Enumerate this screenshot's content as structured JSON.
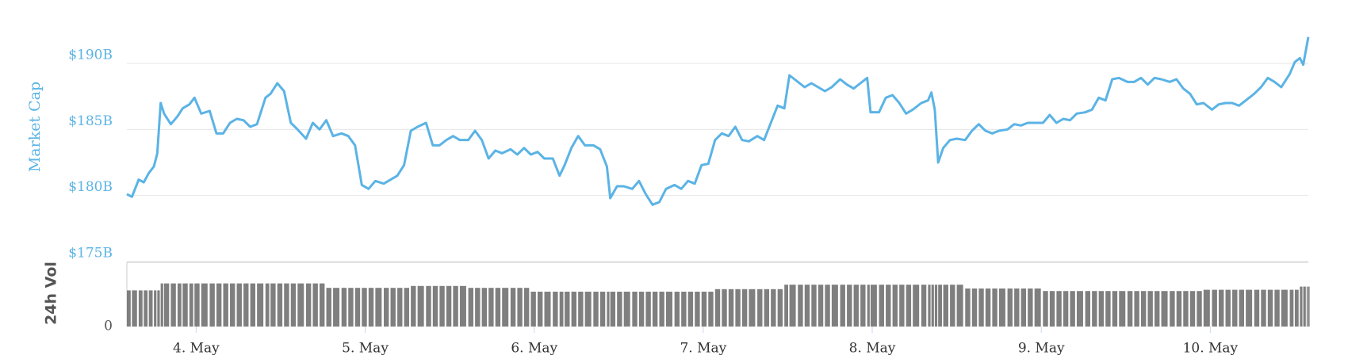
{
  "chart_data": [
    {
      "type": "line",
      "y_label": "Market Cap",
      "color": "#5bb3e5",
      "grid": true,
      "xlim": [
        3.59,
        10.58
      ],
      "ylim": [
        175,
        193
      ],
      "yticks": [
        {
          "value": 175,
          "label": "$175B"
        },
        {
          "value": 180,
          "label": "$180B"
        },
        {
          "value": 185,
          "label": "$185B"
        },
        {
          "value": 190,
          "label": "$190B"
        }
      ],
      "x": [
        3.59,
        3.62,
        3.66,
        3.69,
        3.72,
        3.75,
        3.77,
        3.79,
        3.81,
        3.85,
        3.89,
        3.92,
        3.96,
        3.99,
        4.03,
        4.08,
        4.12,
        4.16,
        4.2,
        4.24,
        4.28,
        4.32,
        4.36,
        4.41,
        4.44,
        4.48,
        4.52,
        4.56,
        4.6,
        4.65,
        4.69,
        4.73,
        4.77,
        4.81,
        4.86,
        4.9,
        4.94,
        4.98,
        5.02,
        5.06,
        5.11,
        5.15,
        5.19,
        5.23,
        5.27,
        5.31,
        5.36,
        5.4,
        5.44,
        5.48,
        5.52,
        5.56,
        5.61,
        5.65,
        5.69,
        5.73,
        5.77,
        5.81,
        5.86,
        5.9,
        5.94,
        5.98,
        6.02,
        6.06,
        6.11,
        6.15,
        6.18,
        6.22,
        6.26,
        6.3,
        6.35,
        6.39,
        6.43,
        6.45,
        6.49,
        6.53,
        6.58,
        6.62,
        6.66,
        6.7,
        6.74,
        6.78,
        6.83,
        6.87,
        6.91,
        6.95,
        6.99,
        7.03,
        7.07,
        7.11,
        7.15,
        7.19,
        7.23,
        7.27,
        7.32,
        7.36,
        7.4,
        7.44,
        7.48,
        7.51,
        7.56,
        7.6,
        7.64,
        7.68,
        7.72,
        7.76,
        7.81,
        7.85,
        7.89,
        7.93,
        7.97,
        7.99,
        8.04,
        8.08,
        8.12,
        8.16,
        8.2,
        8.24,
        8.29,
        8.33,
        8.35,
        8.37,
        8.39,
        8.42,
        8.46,
        8.5,
        8.55,
        8.59,
        8.63,
        8.67,
        8.71,
        8.75,
        8.8,
        8.84,
        8.88,
        8.92,
        8.96,
        9.01,
        9.05,
        9.09,
        9.13,
        9.17,
        9.21,
        9.26,
        9.3,
        9.34,
        9.38,
        9.42,
        9.46,
        9.51,
        9.55,
        9.59,
        9.63,
        9.67,
        9.71,
        9.76,
        9.8,
        9.84,
        9.88,
        9.92,
        9.96,
        10.01,
        10.05,
        10.09,
        10.13,
        10.17,
        10.21,
        10.26,
        10.3,
        10.34,
        10.38,
        10.42,
        10.47,
        10.5,
        10.53,
        10.55,
        10.57,
        10.58
      ],
      "values": [
        180.1,
        179.9,
        181.2,
        181.0,
        181.7,
        182.2,
        183.2,
        187.0,
        186.2,
        185.4,
        186.0,
        186.6,
        186.9,
        187.4,
        186.2,
        186.4,
        184.7,
        184.7,
        185.5,
        185.8,
        185.7,
        185.2,
        185.4,
        187.4,
        187.7,
        188.5,
        187.9,
        185.5,
        185.0,
        184.3,
        185.5,
        185.0,
        185.7,
        184.5,
        184.7,
        184.5,
        183.8,
        180.8,
        180.5,
        181.1,
        180.9,
        181.2,
        181.5,
        182.3,
        184.9,
        185.2,
        185.5,
        183.8,
        183.8,
        184.2,
        184.5,
        184.2,
        184.2,
        184.9,
        184.2,
        182.8,
        183.4,
        183.2,
        183.5,
        183.1,
        183.6,
        183.1,
        183.3,
        182.8,
        182.8,
        181.5,
        182.3,
        183.6,
        184.5,
        183.8,
        183.8,
        183.5,
        182.2,
        179.8,
        180.7,
        180.7,
        180.5,
        181.1,
        180.1,
        179.3,
        179.5,
        180.5,
        180.8,
        180.5,
        181.1,
        180.9,
        182.3,
        182.4,
        184.2,
        184.7,
        184.5,
        185.2,
        184.2,
        184.1,
        184.5,
        184.2,
        185.5,
        186.8,
        186.6,
        189.1,
        188.6,
        188.2,
        188.5,
        188.2,
        187.9,
        188.2,
        188.8,
        188.4,
        188.1,
        188.5,
        188.9,
        186.3,
        186.3,
        187.4,
        187.6,
        187.0,
        186.2,
        186.5,
        187.0,
        187.2,
        187.8,
        186.5,
        182.5,
        183.6,
        184.2,
        184.3,
        184.2,
        184.9,
        185.4,
        184.9,
        184.7,
        184.9,
        185.0,
        185.4,
        185.3,
        185.5,
        185.5,
        185.5,
        186.1,
        185.5,
        185.8,
        185.7,
        186.2,
        186.3,
        186.5,
        187.4,
        187.2,
        188.8,
        188.9,
        188.6,
        188.6,
        188.9,
        188.4,
        188.9,
        188.8,
        188.6,
        188.8,
        188.1,
        187.7,
        186.9,
        187.0,
        186.5,
        186.9,
        187.0,
        187.0,
        186.8,
        187.2,
        187.7,
        188.2,
        188.9,
        188.6,
        188.2,
        189.2,
        190.1,
        190.4,
        189.9,
        191.3,
        192.0
      ]
    },
    {
      "type": "bar",
      "y_label": "24h Vol",
      "color": "#7f7f7f",
      "xlim": [
        3.59,
        10.58
      ],
      "ylim": [
        0,
        10
      ],
      "yticks": [
        0
      ],
      "xticks": [
        {
          "value": 4,
          "label": "4. May"
        },
        {
          "value": 5,
          "label": "5. May"
        },
        {
          "value": 6,
          "label": "6. May"
        },
        {
          "value": 7,
          "label": "7. May"
        },
        {
          "value": 8,
          "label": "8. May"
        },
        {
          "value": 9,
          "label": "9. May"
        },
        {
          "value": 10,
          "label": "10. May"
        }
      ],
      "x": [
        3.59,
        3.62,
        3.66,
        3.69,
        3.72,
        3.75,
        3.77,
        3.79,
        3.81,
        3.85,
        3.89,
        3.92,
        3.96,
        3.99,
        4.03,
        4.08,
        4.12,
        4.16,
        4.2,
        4.24,
        4.28,
        4.32,
        4.36,
        4.41,
        4.44,
        4.48,
        4.52,
        4.56,
        4.6,
        4.65,
        4.69,
        4.73,
        4.77,
        4.81,
        4.86,
        4.9,
        4.94,
        4.98,
        5.02,
        5.06,
        5.11,
        5.15,
        5.19,
        5.23,
        5.27,
        5.31,
        5.36,
        5.4,
        5.44,
        5.48,
        5.52,
        5.56,
        5.61,
        5.65,
        5.69,
        5.73,
        5.77,
        5.81,
        5.86,
        5.9,
        5.94,
        5.98,
        6.02,
        6.06,
        6.11,
        6.15,
        6.18,
        6.22,
        6.26,
        6.3,
        6.35,
        6.39,
        6.43,
        6.45,
        6.49,
        6.53,
        6.58,
        6.62,
        6.66,
        6.7,
        6.74,
        6.78,
        6.83,
        6.87,
        6.91,
        6.95,
        6.99,
        7.03,
        7.07,
        7.11,
        7.15,
        7.19,
        7.23,
        7.27,
        7.32,
        7.36,
        7.4,
        7.44,
        7.48,
        7.51,
        7.56,
        7.6,
        7.64,
        7.68,
        7.72,
        7.76,
        7.81,
        7.85,
        7.89,
        7.93,
        7.97,
        7.99,
        8.04,
        8.08,
        8.12,
        8.16,
        8.2,
        8.24,
        8.29,
        8.33,
        8.35,
        8.37,
        8.39,
        8.42,
        8.46,
        8.5,
        8.55,
        8.59,
        8.63,
        8.67,
        8.71,
        8.75,
        8.8,
        8.84,
        8.88,
        8.92,
        8.96,
        9.01,
        9.05,
        9.09,
        9.13,
        9.17,
        9.21,
        9.26,
        9.3,
        9.34,
        9.38,
        9.42,
        9.46,
        9.51,
        9.55,
        9.59,
        9.63,
        9.67,
        9.71,
        9.76,
        9.8,
        9.84,
        9.88,
        9.92,
        9.96,
        10.01,
        10.05,
        10.09,
        10.13,
        10.17,
        10.21,
        10.26,
        10.3,
        10.34,
        10.38,
        10.42,
        10.47,
        10.5,
        10.53,
        10.55,
        10.57,
        10.58
      ],
      "values": [
        5.7,
        5.7,
        5.7,
        5.7,
        5.7,
        5.7,
        5.7,
        6.8,
        6.8,
        6.8,
        6.8,
        6.8,
        6.8,
        6.8,
        6.8,
        6.8,
        6.8,
        6.8,
        6.8,
        6.8,
        6.8,
        6.8,
        6.8,
        6.8,
        6.8,
        6.8,
        6.8,
        6.8,
        6.8,
        6.8,
        6.8,
        6.8,
        6.1,
        6.1,
        6.1,
        6.1,
        6.1,
        6.1,
        6.1,
        6.1,
        6.1,
        6.1,
        6.1,
        6.1,
        6.4,
        6.4,
        6.4,
        6.4,
        6.4,
        6.4,
        6.4,
        6.4,
        6.1,
        6.1,
        6.1,
        6.1,
        6.1,
        6.1,
        6.1,
        6.1,
        6.1,
        5.5,
        5.5,
        5.5,
        5.5,
        5.5,
        5.5,
        5.5,
        5.5,
        5.5,
        5.5,
        5.5,
        5.5,
        5.5,
        5.5,
        5.5,
        5.5,
        5.5,
        5.5,
        5.5,
        5.5,
        5.5,
        5.5,
        5.5,
        5.5,
        5.5,
        5.5,
        5.5,
        5.9,
        5.9,
        5.9,
        5.9,
        5.9,
        5.9,
        5.9,
        5.9,
        5.9,
        5.9,
        6.6,
        6.6,
        6.6,
        6.6,
        6.6,
        6.6,
        6.6,
        6.6,
        6.6,
        6.6,
        6.6,
        6.6,
        6.6,
        6.6,
        6.6,
        6.6,
        6.6,
        6.6,
        6.6,
        6.6,
        6.6,
        6.6,
        6.6,
        6.6,
        6.6,
        6.6,
        6.6,
        6.6,
        6.0,
        6.0,
        6.0,
        6.0,
        6.0,
        6.0,
        6.0,
        6.0,
        6.0,
        6.0,
        6.0,
        5.6,
        5.6,
        5.6,
        5.6,
        5.6,
        5.6,
        5.6,
        5.6,
        5.6,
        5.6,
        5.6,
        5.6,
        5.6,
        5.6,
        5.6,
        5.6,
        5.6,
        5.6,
        5.6,
        5.6,
        5.6,
        5.6,
        5.6,
        5.8,
        5.8,
        5.8,
        5.8,
        5.8,
        5.8,
        5.8,
        5.8,
        5.8,
        5.8,
        5.8,
        5.8,
        5.8,
        5.8,
        6.3,
        6.3,
        6.3,
        6.3
      ]
    }
  ]
}
